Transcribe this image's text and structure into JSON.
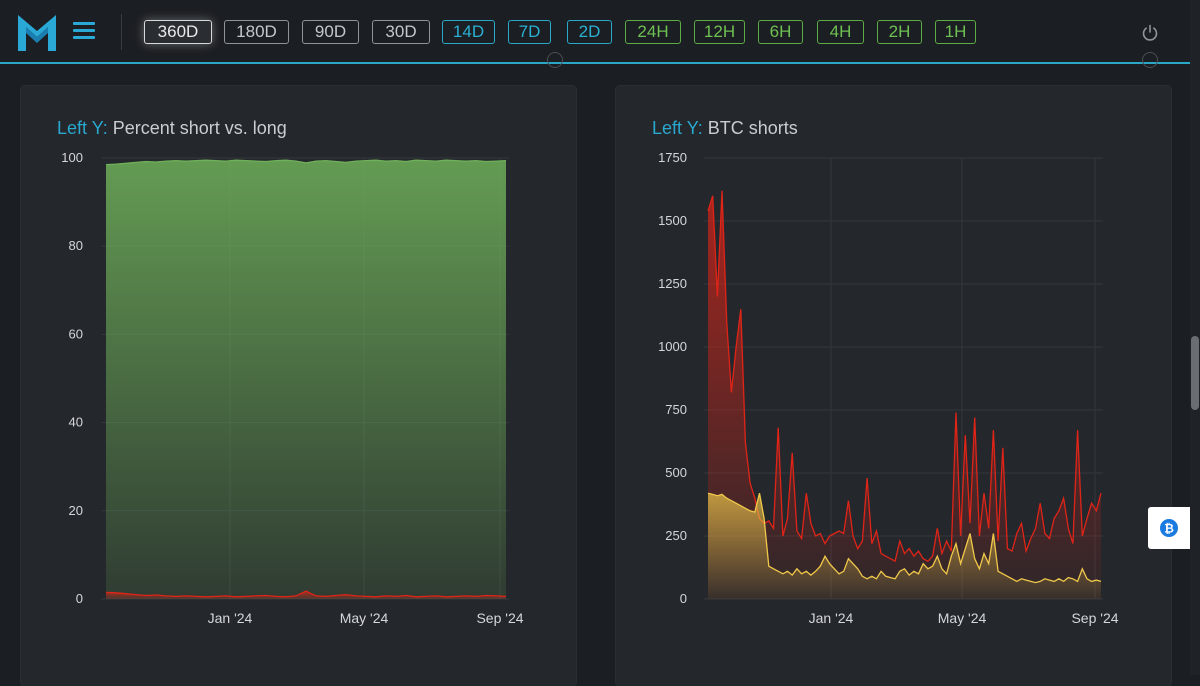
{
  "toolbar": {
    "timeframes": [
      {
        "label": "360D",
        "style": "gray",
        "active": true
      },
      {
        "label": "180D",
        "style": "gray",
        "active": false
      },
      {
        "label": "90D",
        "style": "gray",
        "active": false
      },
      {
        "label": "30D",
        "style": "gray",
        "active": false
      },
      {
        "label": "14D",
        "style": "blue",
        "active": false
      },
      {
        "label": "7D",
        "style": "blue",
        "active": false
      },
      {
        "label": "2D",
        "style": "blue",
        "active": false
      },
      {
        "label": "24H",
        "style": "green",
        "active": false
      },
      {
        "label": "12H",
        "style": "green",
        "active": false
      },
      {
        "label": "6H",
        "style": "green",
        "active": false
      },
      {
        "label": "4H",
        "style": "green",
        "active": false
      },
      {
        "label": "2H",
        "style": "green",
        "active": false
      },
      {
        "label": "1H",
        "style": "green",
        "active": false
      }
    ],
    "menu_icon": "hamburger-menu-icon",
    "power_icon": "power-icon",
    "accent_color": "#2aa8c8"
  },
  "panels": [
    {
      "title_label": "Left Y:",
      "title_text": "Percent short vs. long"
    },
    {
      "title_label": "Left Y:",
      "title_text": "BTC shorts"
    }
  ],
  "side_button": {
    "icon": "bitcoin-icon",
    "color": "#1a7ae0"
  },
  "chart_data": [
    {
      "type": "area",
      "title": "Left Y: Percent short vs. long",
      "x_ticks": [
        "Jan '24",
        "May '24",
        "Sep '24"
      ],
      "y_ticks": [
        0,
        20,
        40,
        60,
        80,
        100
      ],
      "ylim": [
        0,
        100
      ],
      "grid": true,
      "series": [
        {
          "color": "#6fb05a",
          "values": [
            98.5,
            98.6,
            98.8,
            99.0,
            99.2,
            99.1,
            99.3,
            99.4,
            99.3,
            99.4,
            99.5,
            99.4,
            99.3,
            99.5,
            99.4,
            99.3,
            99.2,
            99.4,
            99.5,
            99.3,
            98.9,
            99.3,
            99.4,
            99.2,
            99.0,
            99.3,
            99.4,
            99.5,
            99.3,
            99.4,
            99.2,
            99.5,
            99.4,
            99.3,
            99.5,
            99.4,
            99.3,
            99.4,
            99.2,
            99.3,
            99.4
          ]
        },
        {
          "color": "#e02418",
          "values": [
            1.5,
            1.4,
            1.2,
            1.0,
            0.8,
            0.9,
            0.7,
            0.6,
            0.7,
            0.6,
            0.5,
            0.6,
            0.7,
            0.5,
            0.6,
            0.7,
            0.8,
            0.6,
            0.5,
            0.7,
            1.8,
            0.7,
            0.6,
            0.8,
            1.0,
            0.7,
            0.6,
            0.5,
            0.7,
            0.6,
            0.8,
            0.5,
            0.6,
            0.7,
            0.5,
            0.6,
            0.7,
            0.6,
            0.8,
            0.7,
            0.6
          ]
        }
      ]
    },
    {
      "type": "area",
      "title": "Left Y: BTC shorts",
      "x_ticks": [
        "Jan '24",
        "May '24",
        "Sep '24"
      ],
      "y_ticks": [
        0,
        250,
        500,
        750,
        1000,
        1250,
        1500,
        1750
      ],
      "ylim": [
        0,
        1750
      ],
      "grid": true,
      "series": [
        {
          "color": "#e02418",
          "values": [
            1540,
            1600,
            1200,
            1620,
            1100,
            820,
            1000,
            1150,
            620,
            460,
            400,
            320,
            300,
            310,
            280,
            680,
            250,
            320,
            580,
            270,
            240,
            420,
            300,
            250,
            260,
            220,
            250,
            260,
            270,
            260,
            390,
            250,
            200,
            230,
            480,
            220,
            270,
            180,
            170,
            160,
            150,
            230,
            180,
            200,
            170,
            190,
            160,
            150,
            170,
            280,
            180,
            230,
            190,
            740,
            250,
            650,
            300,
            720,
            250,
            420,
            280,
            670,
            230,
            600,
            200,
            190,
            260,
            300,
            190,
            240,
            280,
            380,
            260,
            240,
            320,
            350,
            400,
            280,
            220,
            670,
            250,
            320,
            380,
            350,
            420
          ]
        },
        {
          "color": "#f0c84a",
          "values": [
            420,
            415,
            410,
            415,
            400,
            390,
            380,
            370,
            360,
            350,
            345,
            420,
            320,
            130,
            120,
            110,
            100,
            110,
            95,
            120,
            100,
            110,
            95,
            110,
            130,
            170,
            140,
            120,
            100,
            110,
            160,
            140,
            120,
            90,
            80,
            90,
            80,
            110,
            90,
            85,
            80,
            110,
            120,
            95,
            110,
            100,
            140,
            120,
            130,
            170,
            120,
            100,
            170,
            220,
            140,
            200,
            260,
            160,
            120,
            180,
            140,
            260,
            110,
            100,
            90,
            80,
            70,
            80,
            75,
            70,
            65,
            70,
            80,
            75,
            70,
            80,
            70,
            85,
            80,
            70,
            120,
            80,
            70,
            75,
            70
          ]
        }
      ]
    }
  ]
}
